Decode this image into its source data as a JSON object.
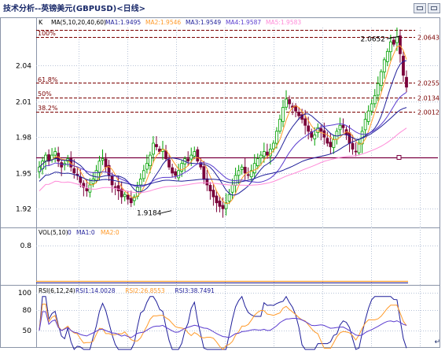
{
  "window": {
    "title": "技术分析--英镑美元(GBPUSD)<日线>"
  },
  "colors": {
    "up": "#00a000",
    "down": "#7a003a",
    "ma1": "#1f1f9a",
    "ma2": "#ff9a2a",
    "ma3": "#1f1f9a",
    "ma4": "#5a3ccf",
    "ma5": "#ff8ad8",
    "fib": "#7a0000",
    "grid": "#b8c4d8"
  },
  "price_panel": {
    "k_label": "K",
    "ma_params": "MA(5,10,20,40,60)",
    "ma_values": [
      {
        "label": "MA1:1.9495",
        "color": "#1f1f9a"
      },
      {
        "label": "MA2:1.9546",
        "color": "#ff9a2a"
      },
      {
        "label": "MA3:1.9549",
        "color": "#1f1f9a"
      },
      {
        "label": "MA4:1.9587",
        "color": "#5a3ccf"
      },
      {
        "label": "MA5:1.9583",
        "color": "#ff8ad8"
      }
    ],
    "fib_labels": [
      "100%",
      "61.8%",
      "50%",
      "38.2%"
    ],
    "fib_prices": [
      "2.0643",
      "2.0255",
      "2.0134",
      "2.0012"
    ],
    "high_label": "2.0652",
    "low_label": "1.9184"
  },
  "volume_panel": {
    "params": "VOL(5,10)",
    "values": [
      {
        "label": "0",
        "color": "#1f1f9a"
      },
      {
        "label": "MA1:0",
        "color": "#1f1f9a"
      },
      {
        "label": "MA2:0",
        "color": "#ff9a2a"
      }
    ],
    "tick": "0.8"
  },
  "rsi_panel": {
    "params": "RSI(6,12,24)",
    "values": [
      {
        "label": "RSI1:14.0028",
        "color": "#1f1f9a"
      },
      {
        "label": "RSI2:26.8553",
        "color": "#ff9a2a"
      },
      {
        "label": "RSI3:38.7491",
        "color": "#1f1f9a"
      }
    ],
    "ticks": [
      "100",
      "80",
      "50"
    ]
  },
  "chart_data": {
    "type": "candlestick",
    "title": "技术分析--英镑美元(GBPUSD)<日线>",
    "xlabel": "",
    "ylabel": "",
    "y_ticks": [
      "2.04",
      "2.01",
      "1.98",
      "1.95",
      "1.92"
    ],
    "ylim": [
      1.905,
      2.072
    ],
    "annotations": {
      "high": 2.0652,
      "low": 1.9184
    },
    "fibonacci": [
      {
        "label": "100%",
        "value": 2.0643
      },
      {
        "label": "61.8%",
        "value": 2.0255
      },
      {
        "label": "50%",
        "value": 2.0134
      },
      {
        "label": "38.2%",
        "value": 2.0012
      }
    ],
    "support_level": 1.963,
    "close_anchors": [
      1.955,
      1.96,
      1.965,
      1.96,
      1.965,
      1.968,
      1.96,
      1.955,
      1.958,
      1.962,
      1.955,
      1.95,
      1.948,
      1.942,
      1.938,
      1.935,
      1.94,
      1.945,
      1.952,
      1.96,
      1.962,
      1.955,
      1.948,
      1.94,
      1.938,
      1.935,
      1.93,
      1.932,
      1.928,
      1.925,
      1.93,
      1.938,
      1.945,
      1.952,
      1.958,
      1.965,
      1.975,
      1.972,
      1.968,
      1.97,
      1.962,
      1.955,
      1.95,
      1.948,
      1.952,
      1.958,
      1.962,
      1.96,
      1.965,
      1.968,
      1.96,
      1.955,
      1.945,
      1.94,
      1.935,
      1.93,
      1.925,
      1.922,
      1.92,
      1.925,
      1.932,
      1.94,
      1.948,
      1.952,
      1.955,
      1.95,
      1.948,
      1.952,
      1.958,
      1.962,
      1.965,
      1.968,
      1.965,
      1.97,
      1.975,
      1.985,
      1.995,
      2.005,
      2.012,
      2.008,
      2.005,
      2.002,
      1.998,
      1.995,
      1.99,
      1.985,
      1.98,
      1.982,
      1.988,
      1.985,
      1.98,
      1.975,
      1.972,
      1.978,
      1.985,
      1.99,
      1.988,
      1.982,
      1.975,
      1.97,
      1.968,
      1.975,
      1.985,
      1.995,
      2.002,
      2.008,
      2.015,
      2.025,
      2.035,
      2.045,
      2.052,
      2.06,
      2.058,
      2.064,
      2.05,
      2.032,
      2.022
    ],
    "rsi_range": [
      0,
      100
    ]
  }
}
